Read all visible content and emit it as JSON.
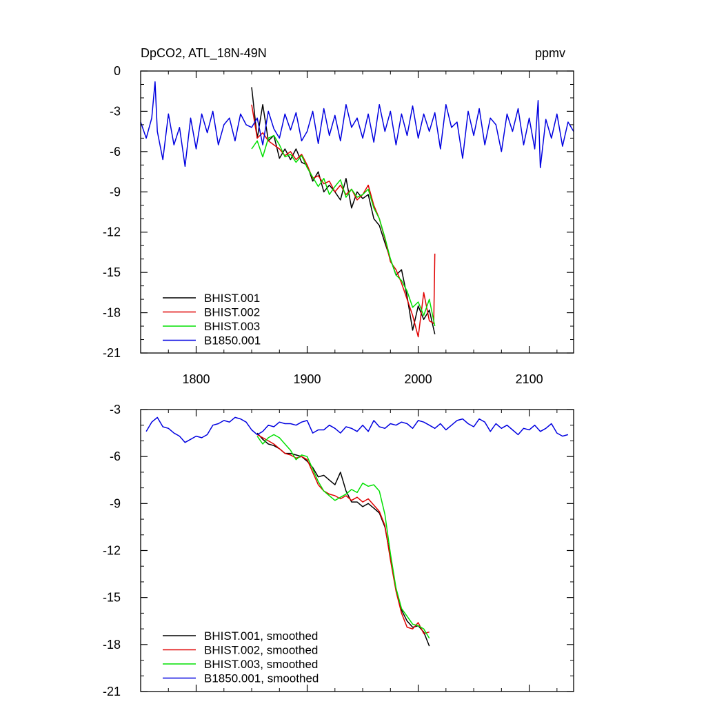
{
  "chart_data": [
    {
      "type": "line",
      "title": "DpCO2, ATL_18N-49N",
      "units": "ppmv",
      "xlim": [
        1750,
        2140
      ],
      "ylim": [
        -21,
        0
      ],
      "xticks": [
        1800,
        1900,
        2000,
        2100
      ],
      "xtick_labels": [
        "1800",
        "1900",
        "2000",
        "2100"
      ],
      "yticks": [
        0,
        -3,
        -6,
        -9,
        -12,
        -15,
        -18,
        -21
      ],
      "ytick_labels": [
        "0",
        "-3",
        "-6",
        "-9",
        "-12",
        "-15",
        "-18",
        "-21"
      ],
      "grid": false,
      "legend_position": "bottom-left",
      "series": [
        {
          "name": "BHIST.001",
          "color": "#000000",
          "x": [
            1850,
            1855,
            1860,
            1865,
            1870,
            1875,
            1880,
            1885,
            1890,
            1895,
            1900,
            1905,
            1910,
            1915,
            1920,
            1925,
            1930,
            1935,
            1940,
            1945,
            1950,
            1955,
            1960,
            1965,
            1970,
            1975,
            1980,
            1985,
            1990,
            1995,
            2000,
            2005,
            2010,
            2015
          ],
          "y": [
            -1.2,
            -5.0,
            -2.5,
            -5.2,
            -4.8,
            -6.5,
            -5.8,
            -6.6,
            -5.8,
            -6.8,
            -7.0,
            -8.2,
            -7.5,
            -9.0,
            -8.5,
            -9.0,
            -9.6,
            -8.0,
            -10.2,
            -9.0,
            -9.5,
            -9.2,
            -11.0,
            -11.5,
            -12.8,
            -14.0,
            -15.2,
            -14.8,
            -16.8,
            -19.3,
            -17.5,
            -18.5,
            -17.8,
            -19.6
          ]
        },
        {
          "name": "BHIST.002",
          "color": "#e00000",
          "x": [
            1850,
            1855,
            1860,
            1865,
            1870,
            1875,
            1880,
            1885,
            1890,
            1895,
            1900,
            1905,
            1910,
            1915,
            1920,
            1925,
            1930,
            1935,
            1940,
            1945,
            1950,
            1955,
            1960,
            1965,
            1970,
            1975,
            1980,
            1985,
            1990,
            1995,
            2000,
            2005,
            2010,
            2014,
            2015
          ],
          "y": [
            -2.5,
            -5.0,
            -4.6,
            -5.2,
            -5.5,
            -5.8,
            -6.3,
            -6.0,
            -6.6,
            -6.2,
            -7.0,
            -8.0,
            -7.8,
            -8.4,
            -8.2,
            -9.0,
            -8.5,
            -9.2,
            -8.8,
            -9.6,
            -9.2,
            -8.5,
            -10.0,
            -11.0,
            -12.5,
            -14.2,
            -14.8,
            -15.8,
            -17.0,
            -18.2,
            -19.8,
            -16.5,
            -18.6,
            -18.8,
            -13.6
          ]
        },
        {
          "name": "BHIST.003",
          "color": "#00e000",
          "x": [
            1850,
            1855,
            1860,
            1865,
            1870,
            1875,
            1880,
            1885,
            1890,
            1895,
            1900,
            1905,
            1910,
            1915,
            1920,
            1925,
            1930,
            1935,
            1940,
            1945,
            1950,
            1955,
            1960,
            1965,
            1970,
            1975,
            1980,
            1985,
            1990,
            1995,
            2000,
            2005,
            2010,
            2015
          ],
          "y": [
            -5.8,
            -5.2,
            -6.4,
            -5.0,
            -4.8,
            -5.5,
            -6.4,
            -6.2,
            -6.8,
            -6.3,
            -7.2,
            -7.9,
            -8.6,
            -8.0,
            -9.2,
            -8.6,
            -8.1,
            -9.4,
            -8.8,
            -9.4,
            -9.2,
            -8.8,
            -10.2,
            -11.0,
            -12.4,
            -14.0,
            -15.2,
            -15.6,
            -16.4,
            -17.6,
            -17.2,
            -18.2,
            -17.0,
            -19.0
          ]
        },
        {
          "name": "B1850.001",
          "color": "#0000e0",
          "x": [
            1750,
            1755,
            1760,
            1763,
            1765,
            1770,
            1775,
            1780,
            1785,
            1790,
            1795,
            1800,
            1805,
            1810,
            1815,
            1820,
            1825,
            1830,
            1835,
            1840,
            1845,
            1850,
            1855,
            1860,
            1865,
            1870,
            1875,
            1880,
            1885,
            1890,
            1895,
            1900,
            1905,
            1910,
            1915,
            1920,
            1925,
            1930,
            1935,
            1940,
            1945,
            1950,
            1955,
            1960,
            1965,
            1970,
            1975,
            1980,
            1985,
            1990,
            1995,
            2000,
            2005,
            2010,
            2015,
            2020,
            2025,
            2030,
            2035,
            2040,
            2045,
            2050,
            2055,
            2060,
            2065,
            2070,
            2075,
            2080,
            2085,
            2090,
            2095,
            2100,
            2105,
            2108,
            2110,
            2115,
            2120,
            2125,
            2130,
            2135,
            2140
          ],
          "y": [
            -3.8,
            -5.0,
            -3.5,
            -0.8,
            -4.5,
            -6.6,
            -3.2,
            -5.5,
            -4.2,
            -7.1,
            -3.5,
            -5.8,
            -3.2,
            -4.6,
            -3.0,
            -5.5,
            -4.0,
            -3.5,
            -5.2,
            -3.2,
            -4.0,
            -4.2,
            -3.5,
            -5.5,
            -3.0,
            -4.3,
            -5.0,
            -3.2,
            -4.4,
            -3.1,
            -5.2,
            -4.5,
            -3.0,
            -5.4,
            -2.8,
            -4.8,
            -3.3,
            -5.2,
            -2.5,
            -4.2,
            -3.5,
            -5.0,
            -3.2,
            -5.3,
            -2.5,
            -4.5,
            -3.0,
            -5.5,
            -3.2,
            -4.8,
            -2.6,
            -5.0,
            -3.2,
            -4.5,
            -3.1,
            -5.8,
            -2.5,
            -4.2,
            -3.8,
            -6.5,
            -3.0,
            -4.8,
            -2.8,
            -5.5,
            -3.5,
            -4.0,
            -6.0,
            -3.2,
            -4.5,
            -2.8,
            -5.5,
            -3.5,
            -5.8,
            -2.2,
            -7.2,
            -3.6,
            -5.0,
            -3.2,
            -5.6,
            -3.8,
            -4.5
          ]
        }
      ]
    },
    {
      "type": "line",
      "xlim": [
        1750,
        2140
      ],
      "ylim": [
        -21,
        -3
      ],
      "xticks": [
        1800,
        1900,
        2000,
        2100
      ],
      "yticks": [
        -3,
        -6,
        -9,
        -12,
        -15,
        -18,
        -21
      ],
      "ytick_labels": [
        "-3",
        "-6",
        "-9",
        "-12",
        "-15",
        "-18",
        "-21"
      ],
      "grid": false,
      "legend_position": "bottom-left",
      "series": [
        {
          "name": "BHIST.001, smoothed",
          "color": "#000000",
          "x": [
            1855,
            1860,
            1865,
            1870,
            1875,
            1880,
            1885,
            1890,
            1895,
            1900,
            1905,
            1910,
            1915,
            1920,
            1925,
            1930,
            1935,
            1940,
            1945,
            1950,
            1955,
            1960,
            1965,
            1970,
            1975,
            1980,
            1985,
            1990,
            1995,
            2000,
            2005,
            2010
          ],
          "y": [
            -4.5,
            -4.9,
            -5.2,
            -5.3,
            -5.5,
            -5.8,
            -5.8,
            -5.9,
            -6.0,
            -6.3,
            -6.7,
            -7.3,
            -7.2,
            -7.5,
            -7.8,
            -7.0,
            -8.2,
            -8.9,
            -8.9,
            -9.2,
            -9.0,
            -9.3,
            -9.6,
            -10.5,
            -12.4,
            -14.5,
            -15.8,
            -16.5,
            -16.9,
            -16.8,
            -17.2,
            -18.1
          ]
        },
        {
          "name": "BHIST.002, smoothed",
          "color": "#e00000",
          "x": [
            1855,
            1860,
            1865,
            1870,
            1875,
            1880,
            1885,
            1890,
            1895,
            1900,
            1905,
            1910,
            1915,
            1920,
            1925,
            1930,
            1935,
            1940,
            1945,
            1950,
            1955,
            1960,
            1965,
            1970,
            1975,
            1980,
            1985,
            1990,
            1995,
            2000,
            2005,
            2010
          ],
          "y": [
            -4.6,
            -4.8,
            -5.0,
            -5.2,
            -5.5,
            -5.8,
            -5.9,
            -6.1,
            -6.0,
            -6.2,
            -7.0,
            -7.8,
            -8.2,
            -8.4,
            -8.5,
            -8.7,
            -8.5,
            -8.8,
            -8.6,
            -8.9,
            -8.7,
            -9.1,
            -9.5,
            -10.4,
            -12.6,
            -14.6,
            -16.0,
            -16.9,
            -17.0,
            -16.6,
            -17.3,
            -17.2
          ]
        },
        {
          "name": "BHIST.003, smoothed",
          "color": "#00e000",
          "x": [
            1855,
            1860,
            1865,
            1870,
            1875,
            1880,
            1885,
            1890,
            1895,
            1900,
            1905,
            1910,
            1915,
            1920,
            1925,
            1930,
            1935,
            1940,
            1945,
            1950,
            1955,
            1960,
            1965,
            1970,
            1975,
            1980,
            1985,
            1990,
            1995,
            2000,
            2005,
            2010
          ],
          "y": [
            -4.7,
            -5.2,
            -4.8,
            -4.6,
            -4.8,
            -5.2,
            -5.6,
            -6.2,
            -5.9,
            -6.0,
            -6.8,
            -7.6,
            -8.2,
            -8.5,
            -8.8,
            -8.6,
            -8.4,
            -8.1,
            -8.3,
            -7.7,
            -7.9,
            -7.8,
            -8.2,
            -9.7,
            -12.2,
            -14.4,
            -15.7,
            -16.2,
            -16.7,
            -16.8,
            -17.0,
            -17.6
          ]
        },
        {
          "name": "B1850.001, smoothed",
          "color": "#0000e0",
          "x": [
            1755,
            1760,
            1765,
            1770,
            1775,
            1780,
            1785,
            1790,
            1795,
            1800,
            1805,
            1810,
            1815,
            1820,
            1825,
            1830,
            1835,
            1840,
            1845,
            1850,
            1855,
            1860,
            1865,
            1870,
            1875,
            1880,
            1885,
            1890,
            1895,
            1900,
            1905,
            1910,
            1915,
            1920,
            1925,
            1930,
            1935,
            1940,
            1945,
            1950,
            1955,
            1960,
            1965,
            1970,
            1975,
            1980,
            1985,
            1990,
            1995,
            2000,
            2005,
            2010,
            2015,
            2020,
            2025,
            2030,
            2035,
            2040,
            2045,
            2050,
            2055,
            2060,
            2065,
            2070,
            2075,
            2080,
            2085,
            2090,
            2095,
            2100,
            2105,
            2110,
            2115,
            2120,
            2125,
            2130,
            2135
          ],
          "y": [
            -4.4,
            -3.8,
            -3.5,
            -4.1,
            -4.2,
            -4.5,
            -4.7,
            -5.1,
            -4.9,
            -4.7,
            -4.8,
            -4.6,
            -4.0,
            -3.9,
            -3.7,
            -3.8,
            -3.5,
            -3.6,
            -3.8,
            -4.3,
            -4.6,
            -4.4,
            -4.0,
            -4.1,
            -3.8,
            -3.9,
            -3.9,
            -4.0,
            -3.8,
            -3.7,
            -4.5,
            -4.3,
            -4.3,
            -4.0,
            -4.2,
            -4.5,
            -4.1,
            -4.2,
            -4.4,
            -4.0,
            -4.4,
            -3.7,
            -4.1,
            -4.2,
            -3.9,
            -4.0,
            -3.8,
            -3.9,
            -4.2,
            -3.7,
            -3.8,
            -4.0,
            -4.2,
            -3.9,
            -4.3,
            -4.0,
            -3.7,
            -3.6,
            -3.9,
            -4.1,
            -3.6,
            -3.8,
            -4.4,
            -3.9,
            -4.2,
            -4.0,
            -4.3,
            -4.6,
            -4.2,
            -4.3,
            -4.0,
            -4.4,
            -4.2,
            -3.9,
            -4.5,
            -4.7,
            -4.6
          ]
        }
      ]
    }
  ]
}
